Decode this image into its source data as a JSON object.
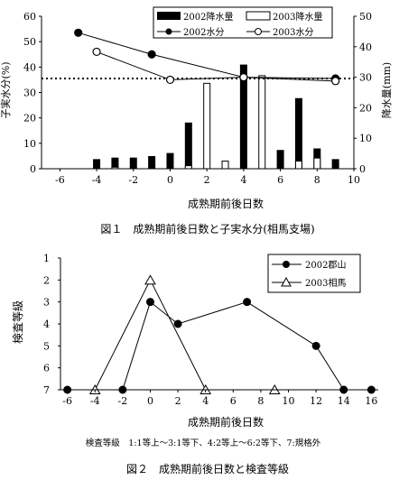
{
  "chart_data": [
    {
      "type": "bar+line",
      "title": "",
      "caption": "図１　成熟期前後日数と子実水分(相馬支場)",
      "xlabel": "成熟期前後日数",
      "ylabel_left": "子実水分(%)",
      "ylabel_right": "降水量(mm)",
      "xlim": [
        -7,
        10
      ],
      "ylim_left": [
        0,
        60
      ],
      "ylim_right": [
        0,
        50
      ],
      "x_ticks": [
        "-6",
        "-4",
        "-2",
        "0",
        "2",
        "4",
        "6",
        "8",
        "10"
      ],
      "y_left_ticks": [
        "0",
        "10",
        "20",
        "30",
        "40",
        "50",
        "60"
      ],
      "y_right_ticks": [
        "0",
        "10",
        "20",
        "30",
        "40",
        "50"
      ],
      "reference_line_left": 35.5,
      "legend_position": "top-right",
      "legend": [
        "2002降水量",
        "2003降水量",
        "2002水分",
        "2003水分"
      ],
      "series": [
        {
          "name": "2002降水量",
          "kind": "bar",
          "axis": "right",
          "fill": "#000000",
          "x": [
            -4,
            -3,
            -2,
            -1,
            0,
            1,
            4,
            6,
            7,
            8,
            9
          ],
          "values": [
            3,
            3.5,
            3.5,
            4,
            5,
            15,
            34,
            6,
            23,
            6.5,
            3
          ]
        },
        {
          "name": "2003降水量",
          "kind": "bar",
          "axis": "right",
          "fill": "#ffffff",
          "x": [
            -3,
            0,
            1,
            2,
            3,
            5,
            7,
            8
          ],
          "values": [
            0.5,
            0.3,
            1,
            28,
            2.5,
            30.5,
            2.5,
            3.5
          ]
        },
        {
          "name": "2002水分",
          "kind": "line",
          "axis": "left",
          "marker": "filled",
          "x": [
            -5,
            -1,
            4,
            9
          ],
          "values": [
            53.5,
            45,
            36,
            35.5
          ]
        },
        {
          "name": "2003水分",
          "kind": "line",
          "axis": "left",
          "marker": "open",
          "x": [
            -4,
            0,
            4,
            9
          ],
          "values": [
            46,
            35,
            36,
            34.5
          ]
        }
      ]
    },
    {
      "type": "line",
      "title": "",
      "caption": "図２　成熟期前後日数と検査等級",
      "note": "検査等級　1:1等上～3:1等下、4:2等上～6:2等下、7:規格外",
      "xlabel": "成熟期前後日数",
      "ylabel": "検査等級",
      "xlim": [
        -6.5,
        16.5
      ],
      "ylim": [
        1,
        7
      ],
      "y_inverted": true,
      "x_ticks": [
        "-6",
        "-4",
        "-2",
        "0",
        "2",
        "4",
        "6",
        "8",
        "10",
        "12",
        "14",
        "16"
      ],
      "y_ticks": [
        "1",
        "2",
        "3",
        "4",
        "5",
        "6",
        "7"
      ],
      "legend_position": "top-right",
      "legend": [
        "2002郡山",
        "2003相馬"
      ],
      "series": [
        {
          "name": "2002郡山",
          "marker": "filled-circle",
          "x": [
            -6,
            -2,
            0,
            2,
            7,
            12,
            14,
            16
          ],
          "values": [
            7,
            7,
            3,
            4,
            3,
            5,
            7,
            7
          ]
        },
        {
          "name": "2003相馬",
          "marker": "open-triangle",
          "x": [
            -4,
            0,
            4,
            9
          ],
          "values": [
            7,
            2,
            7,
            7
          ]
        }
      ]
    }
  ]
}
